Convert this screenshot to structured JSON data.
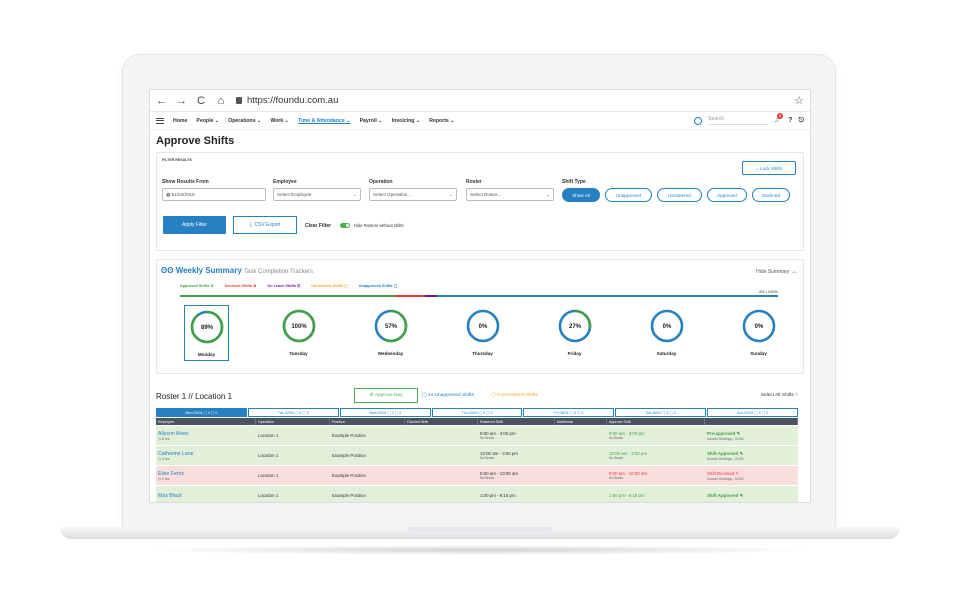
{
  "browser": {
    "url": "https://foundu.com.au",
    "back_icon": "←",
    "forward_icon": "→",
    "reload_icon": "C",
    "home_icon": "⌂",
    "star_icon": "☆"
  },
  "nav": {
    "items": [
      "Home",
      "People ⌄",
      "Operations ⌄",
      "Work ⌄",
      "Time & Attendance ⌄",
      "Payroll ⌄",
      "Invoicing ⌄",
      "Reports ⌄"
    ],
    "search_placeholder": "Search",
    "notification_count": "3",
    "active_color": "#2680c2"
  },
  "page": {
    "title": "Approve Shifts"
  },
  "filter": {
    "section_label": "FILTER RESULTS",
    "lock_label": "Lock Shifts",
    "show_from_label": "Show Results From",
    "show_from_value": "01/04/2019",
    "employee_label": "Employee",
    "employee_placeholder": "Select Employee",
    "operation_label": "Operation",
    "operation_placeholder": "Select Operation...",
    "roster_label": "Roster",
    "roster_placeholder": "Select Roster...",
    "shift_type_label": "Shift Type",
    "shift_types": [
      "Show All",
      "Unapproved",
      "Unrostered",
      "Approved",
      "Declined"
    ],
    "apply_label": "Apply Filter",
    "csv_label": "CSV Export",
    "clear_label": "Clear Filter",
    "hide_label": "Hide Rosters without shifts"
  },
  "summary": {
    "title": "Weekly Summary",
    "subtitle": "Task Completion Trackers",
    "hide_label": "Hide Summary",
    "legend": [
      "Approved Shifts",
      "Declined Shifts",
      "On Leave Shifts",
      "Unrostered Shifts",
      "Unapproved Shifts"
    ],
    "legend_colors": [
      "#43a047",
      "#e53935",
      "#6a1b9a",
      "#f5a623",
      "#2680c2"
    ],
    "progress_label": "4% | 100%",
    "progress_segments": [
      0.36,
      0.05,
      0.02,
      0.57
    ],
    "days": [
      {
        "name": "Monday",
        "pct": "89%",
        "value": 0.89,
        "color": "#43a047"
      },
      {
        "name": "Tuesday",
        "pct": "100%",
        "value": 1.0,
        "color": "#43a047"
      },
      {
        "name": "Wednesday",
        "pct": "57%",
        "value": 0.57,
        "color": "#43a047"
      },
      {
        "name": "Thursday",
        "pct": "0%",
        "value": 0.0,
        "color": "#2680c2"
      },
      {
        "name": "Friday",
        "pct": "27%",
        "value": 0.27,
        "color": "#43a047"
      },
      {
        "name": "Saturday",
        "pct": "0%",
        "value": 0.0,
        "color": "#2680c2"
      },
      {
        "name": "Sunday",
        "pct": "0%",
        "value": 0.0,
        "color": "#2680c2"
      }
    ]
  },
  "roster": {
    "title": "Roster 1 // Location 1",
    "approve_day_label": "Approve Day",
    "unapproved_label": "14 Unapproved Shifts",
    "unrostered_label": "0 Unrostered Shifts",
    "select_all_label": "Select All Shifts",
    "tabs": [
      "Mon 01/04 ▢ 0 ▢ 0",
      "Tue 02/04 ▢ 0 ▢ 0",
      "Wed 03/04 ▢ 0 ▢ 0",
      "Thu 04/04 ▢ 0 ▢ 0",
      "Fri 05/04 ▢ 0 ▢ 0",
      "Sat 06/04 ▢ 0 ▢ 0",
      "Sun 07/04 ▢ 0 ▢ 0"
    ],
    "columns": [
      "Employee",
      "Operation",
      "Position",
      "Clocked Shift",
      "Rostered Shift",
      "Additional",
      "Approve Shift",
      ""
    ],
    "rows": [
      {
        "employee": "Allyson Alves",
        "hours": "8 hrs",
        "operation": "Location 1",
        "position": "Example Position",
        "rostered": "9:00 am - 3:00 pm",
        "rostered_note": "No Break",
        "approve": "9:00 am - 3:00 pm",
        "approve_note": "No Break",
        "status": "Pre-approved",
        "status_note": "foundU Holdings - 01/04",
        "state": "approved"
      },
      {
        "employee": "Catherine Lane",
        "hours": "4 hrs",
        "operation": "Location 1",
        "position": "Example Position",
        "rostered": "10:00 am - 3:00 pm",
        "rostered_note": "No Break",
        "approve": "10:00 am - 3:00 pm",
        "approve_note": "No Break",
        "status": "Shift Approved",
        "status_note": "foundU Holdings - 01/04",
        "state": "approved"
      },
      {
        "employee": "Elsie Ferris",
        "hours": "0 hrs",
        "operation": "Location 1",
        "position": "Example Position",
        "rostered": "5:00 am - 10:00 am",
        "rostered_note": "No Break",
        "approve": "5:00 am - 10:00 am",
        "approve_note": "No Break",
        "status": "Shift Declined",
        "status_note": "foundU Holdings - 01/04",
        "state": "declined"
      },
      {
        "employee": "Max Black",
        "hours": "",
        "operation": "Location 1",
        "position": "Example Position",
        "rostered": "1:00 pm - 9:15 pm",
        "rostered_note": "",
        "approve": "1:00 pm - 9:15 pm",
        "approve_note": "",
        "status": "Shift Approved",
        "status_note": "",
        "state": "approved"
      }
    ]
  }
}
